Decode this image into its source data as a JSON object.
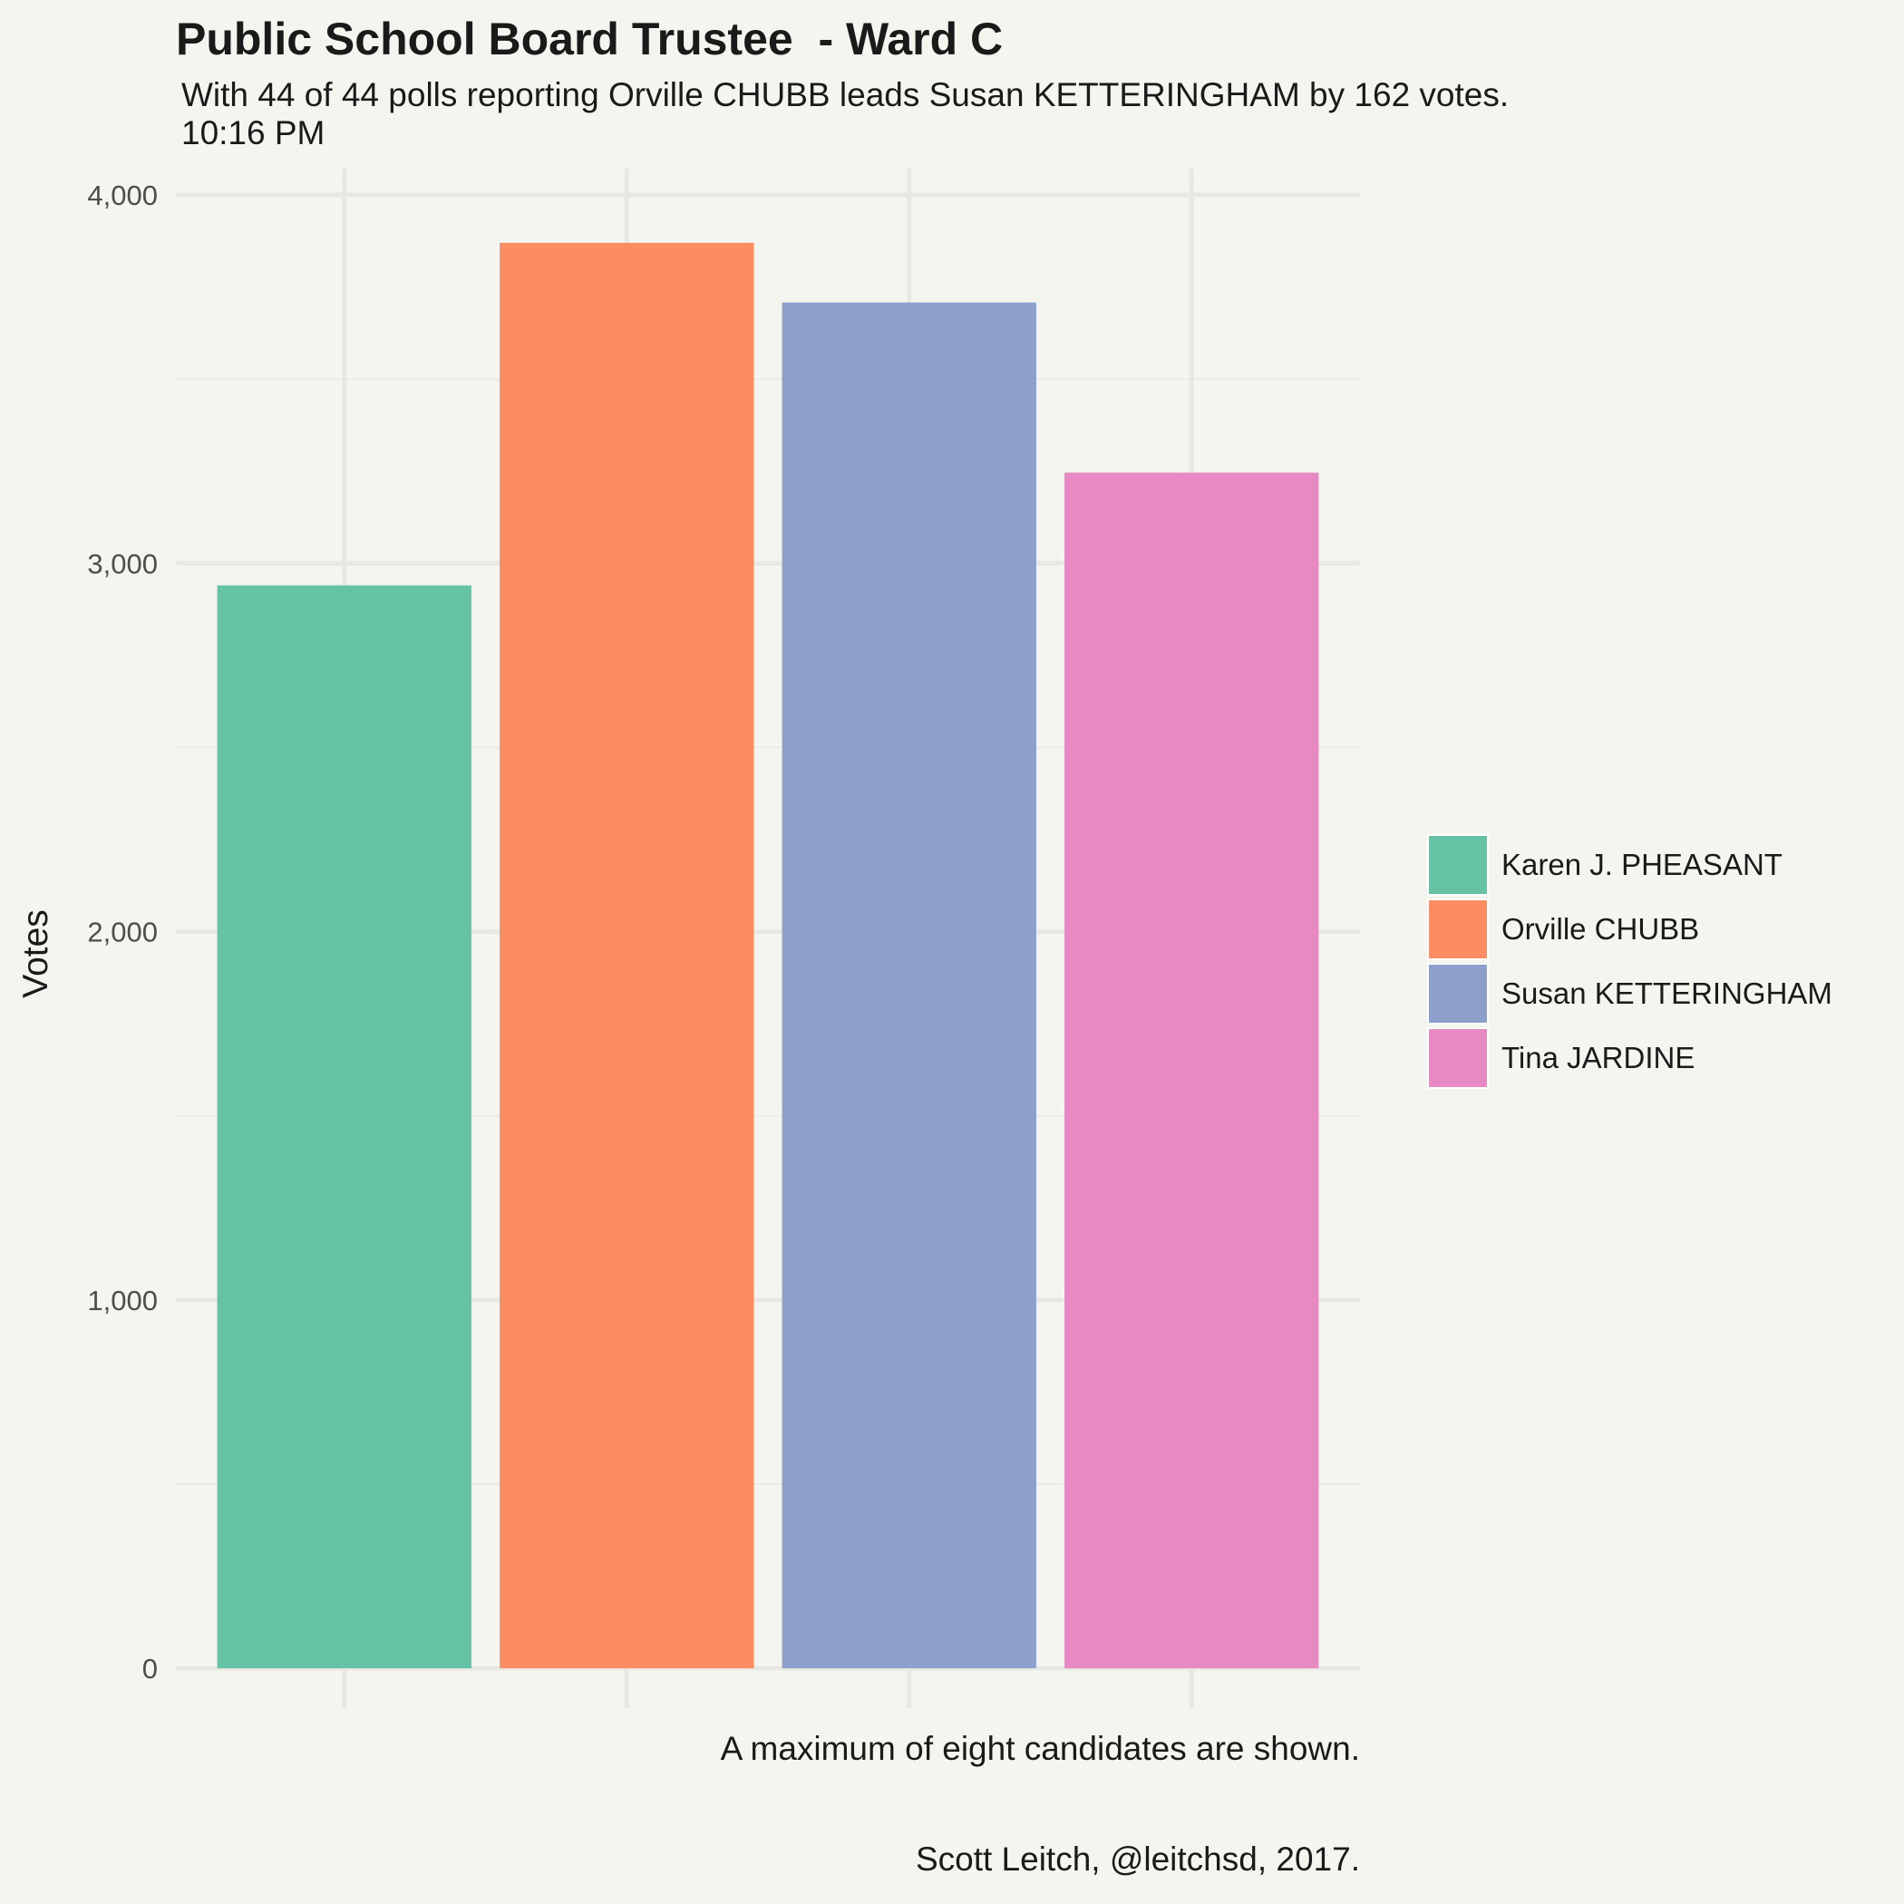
{
  "chart_data": {
    "type": "bar",
    "title": "Public School Board Trustee  - Ward C",
    "subtitle": [
      "With 44 of 44 polls reporting Orville CHUBB leads Susan KETTERINGHAM by 162 votes.",
      "10:16 PM"
    ],
    "xlabel": "",
    "ylabel": "Votes",
    "ylim": [
      0,
      4000
    ],
    "yticks": [
      0,
      1000,
      2000,
      3000,
      4000
    ],
    "ytick_labels": [
      "0",
      "1,000",
      "2,000",
      "3,000",
      "4,000"
    ],
    "grid": true,
    "categories": [
      "Karen J. PHEASANT",
      "Orville CHUBB",
      "Susan KETTERINGHAM",
      "Tina JARDINE"
    ],
    "values": [
      2940,
      3870,
      3708,
      3246
    ],
    "colors": [
      "#66c2a5",
      "#fc8d62",
      "#8da0cb",
      "#e78ac3"
    ],
    "legend_position": "right",
    "captions": [
      "A maximum of eight candidates are shown.",
      "Scott Leitch, @leitchsd, 2017."
    ]
  }
}
